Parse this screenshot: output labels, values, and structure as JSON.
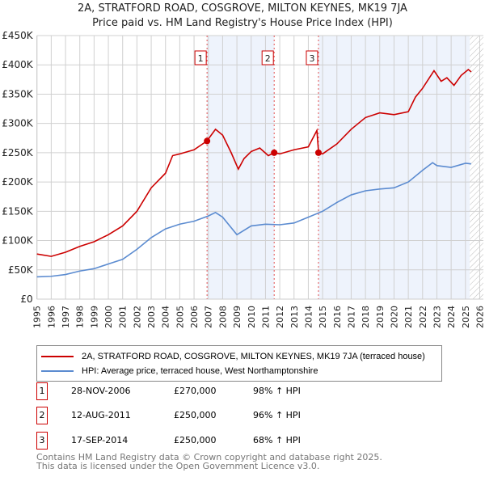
{
  "chart_data": {
    "type": "line",
    "title": "2A, STRATFORD ROAD, COSGROVE, MILTON KEYNES, MK19 7JA",
    "subtitle": "Price paid vs. HM Land Registry's House Price Index (HPI)",
    "xlim": [
      1995,
      2026
    ],
    "ylim": [
      0,
      450000
    ],
    "x_ticks": [
      "1995",
      "1996",
      "1997",
      "1998",
      "1999",
      "2000",
      "2001",
      "2002",
      "2003",
      "2004",
      "2005",
      "2006",
      "2007",
      "2008",
      "2009",
      "2010",
      "2011",
      "2012",
      "2013",
      "2014",
      "2015",
      "2016",
      "2017",
      "2018",
      "2019",
      "2020",
      "2021",
      "2022",
      "2023",
      "2024",
      "2025",
      "2026"
    ],
    "y_ticks": [
      {
        "v": 0,
        "label": "£0"
      },
      {
        "v": 50000,
        "label": "£50K"
      },
      {
        "v": 100000,
        "label": "£100K"
      },
      {
        "v": 150000,
        "label": "£150K"
      },
      {
        "v": 200000,
        "label": "£200K"
      },
      {
        "v": 250000,
        "label": "£250K"
      },
      {
        "v": 300000,
        "label": "£300K"
      },
      {
        "v": 350000,
        "label": "£350K"
      },
      {
        "v": 400000,
        "label": "£400K"
      },
      {
        "v": 450000,
        "label": "£450K"
      }
    ],
    "series": [
      {
        "name": "2A, STRATFORD ROAD, COSGROVE, MILTON KEYNES, MK19 7JA (terraced house)",
        "color": "#cc0000",
        "x": [
          1995,
          1996,
          1997,
          1998,
          1999,
          2000,
          2001,
          2002,
          2003,
          2004,
          2004.5,
          2005,
          2006,
          2006.9,
          2007.5,
          2008,
          2008.6,
          2009.1,
          2009.5,
          2010,
          2010.6,
          2011.2,
          2011.6,
          2012,
          2013,
          2014,
          2014.6,
          2014.72,
          2015,
          2016,
          2017,
          2018,
          2019,
          2020,
          2021,
          2021.5,
          2022,
          2022.8,
          2023.3,
          2023.7,
          2024.2,
          2024.7,
          2025.2,
          2025.4
        ],
        "y": [
          77000,
          73000,
          80000,
          90000,
          98000,
          110000,
          125000,
          150000,
          190000,
          215000,
          245000,
          248000,
          255000,
          270000,
          290000,
          280000,
          250000,
          222000,
          240000,
          252000,
          258000,
          245000,
          250000,
          248000,
          255000,
          260000,
          288000,
          250000,
          248000,
          265000,
          290000,
          310000,
          318000,
          315000,
          320000,
          345000,
          360000,
          390000,
          372000,
          378000,
          365000,
          382000,
          392000,
          388000
        ]
      },
      {
        "name": "HPI: Average price, terraced house, West Northamptonshire",
        "color": "#5b8bd0",
        "x": [
          1995,
          1996,
          1997,
          1998,
          1999,
          2000,
          2001,
          2002,
          2003,
          2004,
          2005,
          2006,
          2007,
          2007.5,
          2008,
          2009,
          2010,
          2011,
          2012,
          2013,
          2014,
          2015,
          2016,
          2017,
          2018,
          2019,
          2020,
          2021,
          2022,
          2022.7,
          2023,
          2024,
          2025,
          2025.4
        ],
        "y": [
          38000,
          39000,
          42000,
          48000,
          52000,
          60000,
          68000,
          85000,
          105000,
          120000,
          128000,
          133000,
          142000,
          148000,
          140000,
          110000,
          125000,
          128000,
          127000,
          130000,
          140000,
          150000,
          165000,
          178000,
          185000,
          188000,
          190000,
          200000,
          220000,
          233000,
          228000,
          225000,
          232000,
          231000
        ]
      }
    ],
    "sales": [
      {
        "n": "1",
        "date": "28-NOV-2006",
        "x": 2006.91,
        "price": "£270,000",
        "value": 270000,
        "hpi": "98% ↑ HPI"
      },
      {
        "n": "2",
        "date": "12-AUG-2011",
        "x": 2011.61,
        "price": "£250,000",
        "value": 250000,
        "hpi": "96% ↑ HPI"
      },
      {
        "n": "3",
        "date": "17-SEP-2014",
        "x": 2014.71,
        "price": "£250,000",
        "value": 250000,
        "hpi": "68% ↑ HPI"
      }
    ],
    "hatch_from": 2025.3
  },
  "footer": {
    "line1": "Contains HM Land Registry data © Crown copyright and database right 2025.",
    "line2": "This data is licensed under the Open Government Licence v3.0."
  }
}
